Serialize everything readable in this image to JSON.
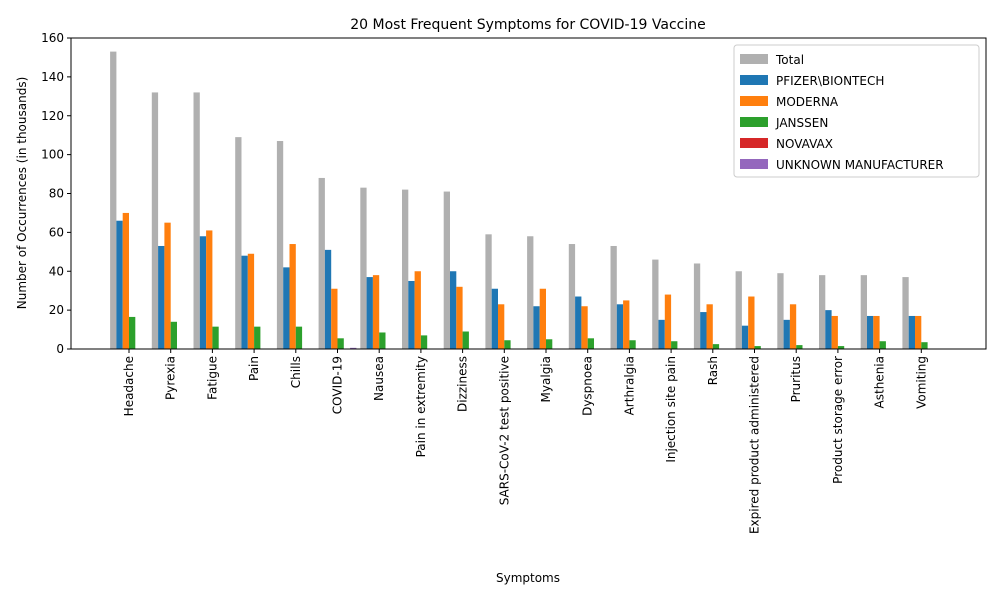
{
  "chart_data": {
    "type": "bar",
    "title": "20 Most Frequent Symptoms for COVID-19 Vaccine",
    "xlabel": "Symptoms",
    "ylabel": "Number of Occurrences (in thousands)",
    "ylim": [
      0,
      160
    ],
    "yticks": [
      0,
      20,
      40,
      60,
      80,
      100,
      120,
      140,
      160
    ],
    "grid": false,
    "legend_position": "top-right",
    "categories": [
      "Headache",
      "Pyrexia",
      "Fatigue",
      "Pain",
      "Chills",
      "COVID-19",
      "Nausea",
      "Pain in extremity",
      "Dizziness",
      "SARS-CoV-2 test positive",
      "Myalgia",
      "Dyspnoea",
      "Arthralgia",
      "Injection site pain",
      "Rash",
      "Expired product administered",
      "Pruritus",
      "Product storage error",
      "Asthenia",
      "Vomiting"
    ],
    "series": [
      {
        "name": "Total",
        "color": "#b0b0b0",
        "values": [
          153,
          132,
          132,
          109,
          107,
          88,
          83,
          82,
          81,
          59,
          58,
          54,
          53,
          46,
          44,
          40,
          39,
          38,
          38,
          37
        ]
      },
      {
        "name": "PFIZER\\BIONTECH",
        "color": "#1f77b4",
        "values": [
          66,
          53,
          58,
          48,
          42,
          51,
          37,
          35,
          40,
          31,
          22,
          27,
          23,
          15,
          19,
          12,
          15,
          20,
          17,
          17
        ]
      },
      {
        "name": "MODERNA",
        "color": "#ff7f0e",
        "values": [
          70,
          65,
          61,
          49,
          54,
          31,
          38,
          40,
          32,
          23,
          31,
          22,
          25,
          28,
          23,
          27,
          23,
          17,
          17,
          17
        ]
      },
      {
        "name": "JANSSEN",
        "color": "#2ca02c",
        "values": [
          16.5,
          14,
          11.5,
          11.5,
          11.5,
          5.5,
          8.5,
          7,
          9,
          4.5,
          5,
          5.5,
          4.5,
          4,
          2.5,
          1.5,
          2,
          1.5,
          4,
          3.5
        ]
      },
      {
        "name": "NOVAVAX",
        "color": "#d62728",
        "values": [
          0.1,
          0.1,
          0.1,
          0.1,
          0.1,
          0.1,
          0.1,
          0.1,
          0.1,
          0.1,
          0.1,
          0.1,
          0.1,
          0.1,
          0.1,
          0.1,
          0.1,
          0.1,
          0.1,
          0.1
        ]
      },
      {
        "name": "UNKNOWN MANUFACTURER",
        "color": "#9467bd",
        "values": [
          0.2,
          0.2,
          0.2,
          0.2,
          0.2,
          0.6,
          0.2,
          0.2,
          0.2,
          0.2,
          0.2,
          0.2,
          0.2,
          0.2,
          0.2,
          0.2,
          0.2,
          0.2,
          0.2,
          0.2
        ]
      }
    ]
  }
}
